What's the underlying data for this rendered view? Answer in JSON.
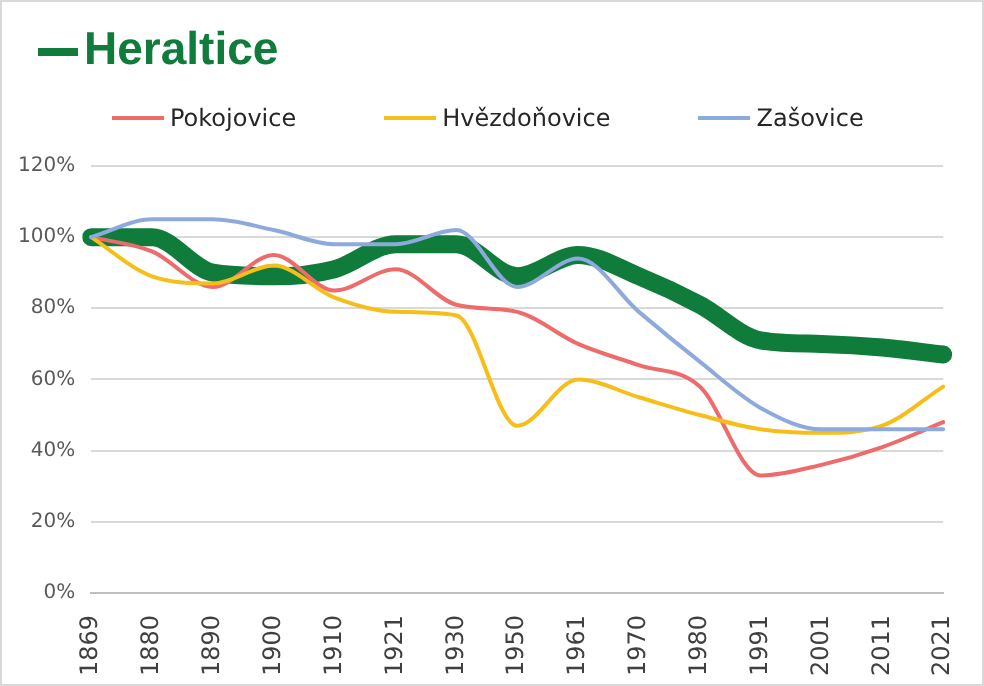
{
  "chart_data": {
    "type": "line",
    "categories": [
      "1869",
      "1880",
      "1890",
      "1900",
      "1910",
      "1921",
      "1930",
      "1950",
      "1961",
      "1970",
      "1980",
      "1991",
      "2001",
      "2011",
      "2021"
    ],
    "series": [
      {
        "name": "Heraltice",
        "color": "#107c3c",
        "values": [
          100,
          100,
          90,
          89,
          91,
          98,
          98,
          89,
          95,
          89,
          81,
          71,
          70,
          69,
          67
        ]
      },
      {
        "name": "Pokojovice",
        "color": "#ee6b6b",
        "values": [
          100,
          96,
          86,
          95,
          85,
          91,
          81,
          79,
          70,
          64,
          58,
          33,
          36,
          41,
          48
        ]
      },
      {
        "name": "Hvězdoňovice",
        "color": "#f5be1a",
        "values": [
          100,
          89,
          87,
          92,
          83,
          79,
          78,
          47,
          60,
          55,
          50,
          46,
          45,
          47,
          58
        ]
      },
      {
        "name": "Zašovice",
        "color": "#8ea9db",
        "values": [
          100,
          105,
          105,
          102,
          98,
          98,
          102,
          86,
          94,
          79,
          65,
          52,
          46,
          46,
          46
        ]
      }
    ],
    "ylim": [
      0,
      120
    ],
    "yticks": [
      {
        "value": 0,
        "label": "0%"
      },
      {
        "value": 20,
        "label": "20%"
      },
      {
        "value": 40,
        "label": "40%"
      },
      {
        "value": 60,
        "label": "60%"
      },
      {
        "value": 80,
        "label": "80%"
      },
      {
        "value": 100,
        "label": "100%"
      },
      {
        "value": 120,
        "label": "120%"
      }
    ],
    "grid": "y",
    "legend": "top",
    "marker": "none",
    "line_style": "solid"
  }
}
